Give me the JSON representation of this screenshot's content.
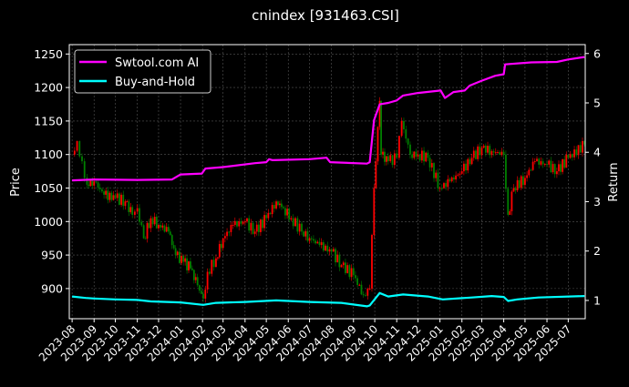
{
  "chart_data": {
    "type": "candlestick+line",
    "title": "cnindex [931463.CSI]",
    "xlabel": "",
    "ylabel": "Price",
    "y2label": "Return",
    "xlim": [
      "2023-07-28",
      "2025-07-25"
    ],
    "ylim": [
      855,
      1264
    ],
    "y2lim": [
      0.63,
      6.18
    ],
    "grid": true,
    "legend_placement": "top-left",
    "x_ticks": [
      "2023-08",
      "2023-09",
      "2023-10",
      "2023-11",
      "2023-12",
      "2024-01",
      "2024-02",
      "2024-03",
      "2024-04",
      "2024-05",
      "2024-06",
      "2024-07",
      "2024-08",
      "2024-09",
      "2024-10",
      "2024-11",
      "2024-12",
      "2025-01",
      "2025-02",
      "2025-03",
      "2025-04",
      "2025-05",
      "2025-06",
      "2025-07"
    ],
    "y_ticks": [
      900,
      950,
      1000,
      1050,
      1100,
      1150,
      1200,
      1250
    ],
    "y2_ticks": [
      1,
      2,
      3,
      4,
      5,
      6
    ],
    "colors": {
      "up": "#ff0000",
      "down": "#008000",
      "swtool": "#ff00ff",
      "buyhold": "#00ffff",
      "grid": "#555555"
    },
    "price": [
      [
        "2023-08-01",
        1100
      ],
      [
        "2023-08-08",
        1120
      ],
      [
        "2023-08-15",
        1090
      ],
      [
        "2023-08-22",
        1055
      ],
      [
        "2023-09-01",
        1060
      ],
      [
        "2023-09-15",
        1040
      ],
      [
        "2023-10-01",
        1035
      ],
      [
        "2023-10-15",
        1030
      ],
      [
        "2023-10-25",
        1010
      ],
      [
        "2023-11-01",
        1020
      ],
      [
        "2023-11-10",
        975
      ],
      [
        "2023-11-20",
        1005
      ],
      [
        "2023-12-01",
        995
      ],
      [
        "2023-12-15",
        985
      ],
      [
        "2023-12-25",
        950
      ],
      [
        "2024-01-05",
        940
      ],
      [
        "2024-01-15",
        930
      ],
      [
        "2024-01-25",
        905
      ],
      [
        "2024-02-02",
        885
      ],
      [
        "2024-02-08",
        925
      ],
      [
        "2024-02-20",
        945
      ],
      [
        "2024-03-01",
        975
      ],
      [
        "2024-03-15",
        995
      ],
      [
        "2024-04-01",
        1000
      ],
      [
        "2024-04-15",
        985
      ],
      [
        "2024-05-01",
        1005
      ],
      [
        "2024-05-15",
        1030
      ],
      [
        "2024-05-25",
        1020
      ],
      [
        "2024-06-05",
        1005
      ],
      [
        "2024-06-20",
        985
      ],
      [
        "2024-07-01",
        975
      ],
      [
        "2024-07-15",
        965
      ],
      [
        "2024-08-01",
        955
      ],
      [
        "2024-08-15",
        935
      ],
      [
        "2024-09-01",
        920
      ],
      [
        "2024-09-15",
        890
      ],
      [
        "2024-09-24",
        900
      ],
      [
        "2024-09-27",
        980
      ],
      [
        "2024-09-30",
        1050
      ],
      [
        "2024-10-08",
        1180
      ],
      [
        "2024-10-10",
        1100
      ],
      [
        "2024-10-20",
        1090
      ],
      [
        "2024-11-01",
        1095
      ],
      [
        "2024-11-08",
        1150
      ],
      [
        "2024-11-20",
        1100
      ],
      [
        "2024-12-01",
        1100
      ],
      [
        "2024-12-15",
        1095
      ],
      [
        "2025-01-01",
        1050
      ],
      [
        "2025-01-15",
        1060
      ],
      [
        "2025-02-01",
        1075
      ],
      [
        "2025-02-15",
        1095
      ],
      [
        "2025-03-01",
        1110
      ],
      [
        "2025-03-15",
        1105
      ],
      [
        "2025-04-01",
        1100
      ],
      [
        "2025-04-07",
        1010
      ],
      [
        "2025-04-15",
        1050
      ],
      [
        "2025-05-01",
        1065
      ],
      [
        "2025-05-15",
        1090
      ],
      [
        "2025-06-01",
        1085
      ],
      [
        "2025-06-15",
        1075
      ],
      [
        "2025-07-01",
        1095
      ],
      [
        "2025-07-24",
        1115
      ]
    ],
    "series": [
      {
        "name": "Swtool.com AI",
        "axis": "right",
        "points": [
          [
            "2023-08-01",
            3.43
          ],
          [
            "2023-09-01",
            3.45
          ],
          [
            "2023-11-01",
            3.44
          ],
          [
            "2023-12-20",
            3.45
          ],
          [
            "2024-01-01",
            3.55
          ],
          [
            "2024-01-31",
            3.57
          ],
          [
            "2024-02-05",
            3.67
          ],
          [
            "2024-03-01",
            3.7
          ],
          [
            "2024-04-15",
            3.78
          ],
          [
            "2024-05-01",
            3.8
          ],
          [
            "2024-05-05",
            3.86
          ],
          [
            "2024-05-10",
            3.84
          ],
          [
            "2024-07-01",
            3.86
          ],
          [
            "2024-07-25",
            3.89
          ],
          [
            "2024-07-30",
            3.8
          ],
          [
            "2024-09-20",
            3.77
          ],
          [
            "2024-09-24",
            3.8
          ],
          [
            "2024-09-30",
            4.65
          ],
          [
            "2024-10-08",
            4.97
          ],
          [
            "2024-10-20",
            5.0
          ],
          [
            "2024-11-01",
            5.05
          ],
          [
            "2024-11-10",
            5.15
          ],
          [
            "2024-12-01",
            5.2
          ],
          [
            "2025-01-02",
            5.25
          ],
          [
            "2025-01-08",
            5.1
          ],
          [
            "2025-01-20",
            5.22
          ],
          [
            "2025-02-05",
            5.25
          ],
          [
            "2025-02-12",
            5.35
          ],
          [
            "2025-03-01",
            5.45
          ],
          [
            "2025-03-20",
            5.55
          ],
          [
            "2025-04-01",
            5.58
          ],
          [
            "2025-04-03",
            5.78
          ],
          [
            "2025-05-10",
            5.82
          ],
          [
            "2025-06-15",
            5.83
          ],
          [
            "2025-07-01",
            5.88
          ],
          [
            "2025-07-24",
            5.93
          ]
        ]
      },
      {
        "name": "Buy-and-Hold",
        "axis": "right",
        "points": [
          [
            "2023-08-01",
            1.08
          ],
          [
            "2023-08-20",
            1.05
          ],
          [
            "2023-09-01",
            1.04
          ],
          [
            "2023-10-01",
            1.02
          ],
          [
            "2023-11-01",
            1.01
          ],
          [
            "2023-11-20",
            0.98
          ],
          [
            "2024-01-01",
            0.96
          ],
          [
            "2024-02-02",
            0.91
          ],
          [
            "2024-02-20",
            0.95
          ],
          [
            "2024-04-01",
            0.97
          ],
          [
            "2024-05-15",
            1.0
          ],
          [
            "2024-07-01",
            0.97
          ],
          [
            "2024-08-15",
            0.95
          ],
          [
            "2024-09-20",
            0.88
          ],
          [
            "2024-09-24",
            0.9
          ],
          [
            "2024-10-08",
            1.15
          ],
          [
            "2024-10-20",
            1.08
          ],
          [
            "2024-11-10",
            1.12
          ],
          [
            "2024-12-15",
            1.08
          ],
          [
            "2025-01-05",
            1.02
          ],
          [
            "2025-02-15",
            1.06
          ],
          [
            "2025-03-15",
            1.09
          ],
          [
            "2025-04-01",
            1.07
          ],
          [
            "2025-04-07",
            0.99
          ],
          [
            "2025-04-20",
            1.02
          ],
          [
            "2025-05-20",
            1.06
          ],
          [
            "2025-07-24",
            1.09
          ]
        ]
      }
    ]
  }
}
